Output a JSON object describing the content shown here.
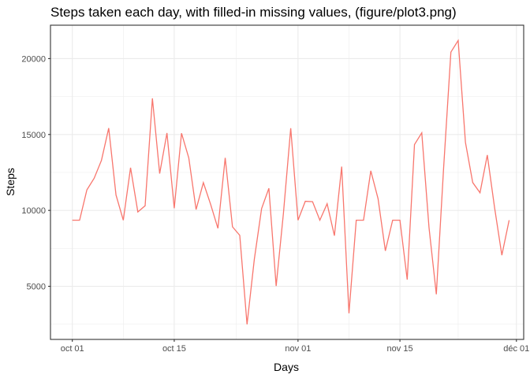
{
  "chart_data": {
    "type": "line",
    "title": "Steps taken each day, with filled-in missing values, (figure/plot3.png)",
    "xlabel": "Days",
    "ylabel": "Steps",
    "x_ticks": [
      {
        "date": "2012-10-01",
        "label": "oct 01"
      },
      {
        "date": "2012-10-15",
        "label": "oct 15"
      },
      {
        "date": "2012-11-01",
        "label": "nov 01"
      },
      {
        "date": "2012-11-15",
        "label": "nov 15"
      },
      {
        "date": "2012-12-01",
        "label": "déc 01"
      }
    ],
    "xlim": [
      "2012-09-28",
      "2012-12-02"
    ],
    "y_ticks": [
      5000,
      10000,
      15000,
      20000
    ],
    "ylim": [
      1500,
      22200
    ],
    "grid": true,
    "line_color": "#f8766d",
    "x": [
      "2012-10-01",
      "2012-10-02",
      "2012-10-03",
      "2012-10-04",
      "2012-10-05",
      "2012-10-06",
      "2012-10-07",
      "2012-10-08",
      "2012-10-09",
      "2012-10-10",
      "2012-10-11",
      "2012-10-12",
      "2012-10-13",
      "2012-10-14",
      "2012-10-15",
      "2012-10-16",
      "2012-10-17",
      "2012-10-18",
      "2012-10-19",
      "2012-10-20",
      "2012-10-21",
      "2012-10-22",
      "2012-10-23",
      "2012-10-24",
      "2012-10-25",
      "2012-10-26",
      "2012-10-27",
      "2012-10-28",
      "2012-10-29",
      "2012-10-30",
      "2012-10-31",
      "2012-11-01",
      "2012-11-02",
      "2012-11-03",
      "2012-11-04",
      "2012-11-05",
      "2012-11-06",
      "2012-11-07",
      "2012-11-08",
      "2012-11-09",
      "2012-11-10",
      "2012-11-11",
      "2012-11-12",
      "2012-11-13",
      "2012-11-14",
      "2012-11-15",
      "2012-11-16",
      "2012-11-17",
      "2012-11-18",
      "2012-11-19",
      "2012-11-20",
      "2012-11-21",
      "2012-11-22",
      "2012-11-23",
      "2012-11-24",
      "2012-11-25",
      "2012-11-26",
      "2012-11-27",
      "2012-11-28",
      "2012-11-29",
      "2012-11-30"
    ],
    "values": [
      9354,
      9354,
      11352,
      12116,
      13294,
      15420,
      11015,
      9354,
      12811,
      9900,
      10304,
      17382,
      12426,
      15098,
      10139,
      15084,
      13452,
      10056,
      11829,
      10395,
      8821,
      13460,
      8918,
      8355,
      2492,
      6778,
      10119,
      11458,
      5018,
      9819,
      15414,
      9354,
      10600,
      10571,
      9354,
      10439,
      8334,
      12883,
      3219,
      9354,
      9354,
      12608,
      10765,
      7336,
      9354,
      9354,
      5441,
      14339,
      15110,
      8841,
      4472,
      12787,
      20427,
      21194,
      14478,
      11834,
      11162,
      13646,
      10183,
      7047,
      9354
    ]
  }
}
